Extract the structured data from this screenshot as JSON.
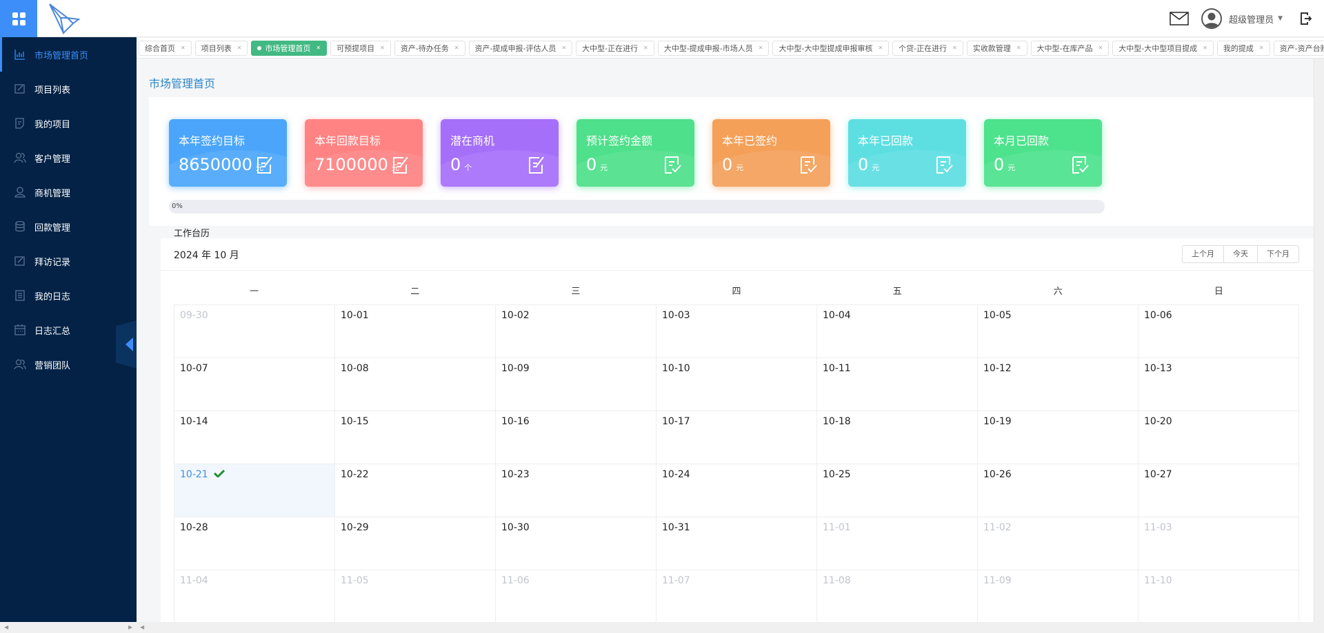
{
  "header": {
    "username": "超级管理员"
  },
  "sidebar": {
    "items": [
      {
        "label": "市场管理首页",
        "icon": "chart-icon",
        "active": true
      },
      {
        "label": "项目列表",
        "icon": "edit-icon"
      },
      {
        "label": "我的项目",
        "icon": "document-icon"
      },
      {
        "label": "客户管理",
        "icon": "users-icon"
      },
      {
        "label": "商机管理",
        "icon": "user-icon"
      },
      {
        "label": "回款管理",
        "icon": "database-icon"
      },
      {
        "label": "拜访记录",
        "icon": "edit-icon"
      },
      {
        "label": "我的日志",
        "icon": "list-icon"
      },
      {
        "label": "日志汇总",
        "icon": "calendar-icon"
      },
      {
        "label": "营销团队",
        "icon": "users-icon"
      }
    ]
  },
  "tabs": [
    {
      "label": "综合首页"
    },
    {
      "label": "项目列表"
    },
    {
      "label": "市场管理首页",
      "active": true
    },
    {
      "label": "可预提项目"
    },
    {
      "label": "资产-待办任务"
    },
    {
      "label": "资产-提成申报-评估人员"
    },
    {
      "label": "大中型-正在进行"
    },
    {
      "label": "大中型-提成申报-市场人员"
    },
    {
      "label": "大中型-大中型提成申报审核"
    },
    {
      "label": "个贷-正在进行"
    },
    {
      "label": "实收款管理"
    },
    {
      "label": "大中型-在库产品"
    },
    {
      "label": "大中型-大中型项目提成"
    },
    {
      "label": "我的提成"
    },
    {
      "label": "资产-资产台账"
    }
  ],
  "page_title": "市场管理首页",
  "cards": [
    {
      "title": "本年签约目标",
      "value": "8650000",
      "unit": "元",
      "color": "#4ba6fb"
    },
    {
      "title": "本年回款目标",
      "value": "7100000",
      "unit": "元",
      "color": "#ff8383"
    },
    {
      "title": "潜在商机",
      "value": "0",
      "unit": "个",
      "color": "#a56ffa"
    },
    {
      "title": "预计签约金额",
      "value": "0",
      "unit": "元",
      "color": "#4ee08a"
    },
    {
      "title": "本年已签约",
      "value": "0",
      "unit": "元",
      "color": "#f4a059"
    },
    {
      "title": "本年已回款",
      "value": "0",
      "unit": "元",
      "color": "#5ddfe2"
    },
    {
      "title": "本月已回款",
      "value": "0",
      "unit": "元",
      "color": "#4de28c"
    }
  ],
  "progress": {
    "label": "0%",
    "percent": 0
  },
  "calendar": {
    "label": "工作台历",
    "year_month": "2024 年 10 月",
    "buttons": [
      "上个月",
      "今天",
      "下个月"
    ],
    "weekdays": [
      "一",
      "二",
      "三",
      "四",
      "五",
      "六",
      "日"
    ],
    "today": "10-21",
    "checked": [
      "10-21"
    ],
    "weeks": [
      [
        "09-30",
        "10-01",
        "10-02",
        "10-03",
        "10-04",
        "10-05",
        "10-06"
      ],
      [
        "10-07",
        "10-08",
        "10-09",
        "10-10",
        "10-11",
        "10-12",
        "10-13"
      ],
      [
        "10-14",
        "10-15",
        "10-16",
        "10-17",
        "10-18",
        "10-19",
        "10-20"
      ],
      [
        "10-21",
        "10-22",
        "10-23",
        "10-24",
        "10-25",
        "10-26",
        "10-27"
      ],
      [
        "10-28",
        "10-29",
        "10-30",
        "10-31",
        "11-01",
        "11-02",
        "11-03"
      ],
      [
        "11-04",
        "11-05",
        "11-06",
        "11-07",
        "11-08",
        "11-09",
        "11-10"
      ]
    ]
  }
}
